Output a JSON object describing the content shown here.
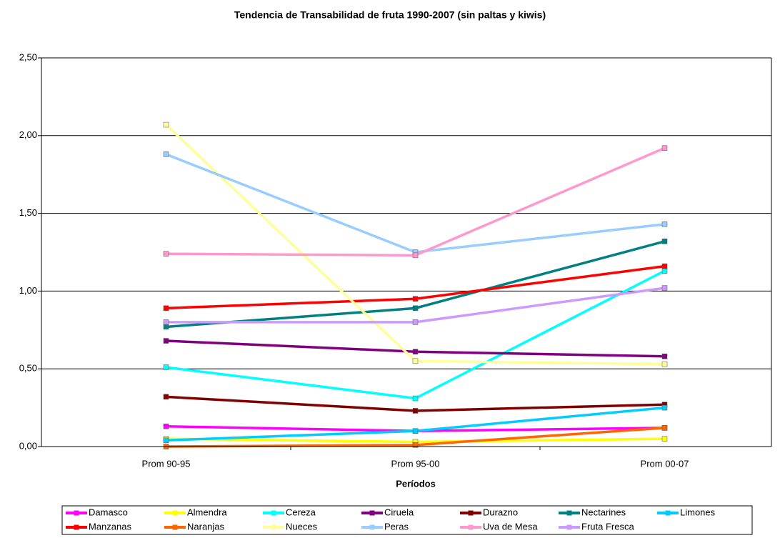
{
  "chart_data": {
    "type": "line",
    "title": "Tendencia de Transabilidad de fruta 1990-2007 (sin paltas y kiwis)",
    "x_label": "Períodos",
    "categories": [
      "Prom 90-95",
      "Prom 95-00",
      "Prom 00-07"
    ],
    "ylim": [
      0,
      2.5
    ],
    "yticks": [
      {
        "value": 0,
        "label": "0,00"
      },
      {
        "value": 0.5,
        "label": "0,50"
      },
      {
        "value": 1,
        "label": "1,00"
      },
      {
        "value": 1.5,
        "label": "1,50"
      },
      {
        "value": 2,
        "label": "2,00"
      },
      {
        "value": 2.5,
        "label": "2,50"
      }
    ],
    "grid": true,
    "legend": "bottom",
    "series": [
      {
        "name": "Damasco",
        "color": "#ff00ff",
        "values": [
          0.13,
          0.1,
          0.12
        ]
      },
      {
        "name": "Almendra",
        "color": "#ffff00",
        "values": [
          0.05,
          0.03,
          0.05
        ]
      },
      {
        "name": "Cereza",
        "color": "#00ffff",
        "values": [
          0.51,
          0.31,
          1.13
        ]
      },
      {
        "name": "Ciruela",
        "color": "#800080",
        "values": [
          0.68,
          0.61,
          0.58
        ]
      },
      {
        "name": "Durazno",
        "color": "#800000",
        "values": [
          0.32,
          0.23,
          0.27
        ]
      },
      {
        "name": "Nectarines",
        "color": "#008080",
        "values": [
          0.77,
          0.89,
          1.32
        ]
      },
      {
        "name": "Limones",
        "color": "#00ccff",
        "values": [
          0.04,
          0.1,
          0.25
        ]
      },
      {
        "name": "Manzanas",
        "color": "#ff0000",
        "values": [
          0.89,
          0.95,
          1.16
        ]
      },
      {
        "name": "Naranjas",
        "color": "#ff6600",
        "values": [
          0.0,
          0.01,
          0.12
        ]
      },
      {
        "name": "Nueces",
        "color": "#ffff99",
        "values": [
          2.07,
          0.55,
          0.53
        ]
      },
      {
        "name": "Peras",
        "color": "#99ccff",
        "values": [
          1.88,
          1.25,
          1.43
        ]
      },
      {
        "name": "Uva de Mesa",
        "color": "#ff99cc",
        "values": [
          1.24,
          1.23,
          1.92
        ]
      },
      {
        "name": "Fruta Fresca",
        "color": "#cc99ff",
        "values": [
          0.8,
          0.8,
          1.02
        ]
      }
    ]
  }
}
